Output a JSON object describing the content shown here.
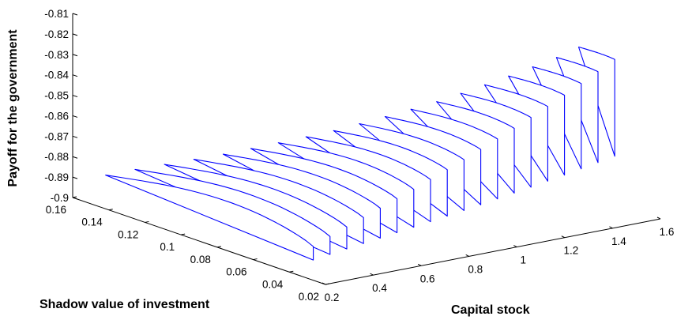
{
  "chart_data": {
    "type": "surface-slices-3d",
    "zlabel": "Payoff for the government",
    "xlabel": "Capital stock",
    "ylabel": "Shadow value of investment",
    "x_ticks": [
      "0.2",
      "0.4",
      "0.6",
      "0.8",
      "1",
      "1.2",
      "1.4",
      "1.6"
    ],
    "y_ticks": [
      "0.02",
      "0.04",
      "0.06",
      "0.08",
      "0.1",
      "0.12",
      "0.14",
      "0.16"
    ],
    "z_ticks": [
      "-0.9",
      "-0.89",
      "-0.88",
      "-0.87",
      "-0.86",
      "-0.85",
      "-0.84",
      "-0.83",
      "-0.82",
      "-0.81"
    ],
    "xlim": [
      0.2,
      1.6
    ],
    "ylim": [
      0.02,
      0.16
    ],
    "zlim": [
      -0.9,
      -0.81
    ],
    "grid": false,
    "line_color": "#0000ff",
    "series": [
      {
        "capital": 0.3,
        "y_range": [
          0.04,
          0.155
        ],
        "payoff_low": -0.8898,
        "payoff_peak": -0.8822
      },
      {
        "capital": 0.37,
        "y_range": [
          0.04,
          0.148
        ],
        "payoff_low": -0.8865,
        "payoff_peak": -0.8795
      },
      {
        "capital": 0.44,
        "y_range": [
          0.04,
          0.141
        ],
        "payoff_low": -0.8835,
        "payoff_peak": -0.8772
      },
      {
        "capital": 0.51,
        "y_range": [
          0.04,
          0.134
        ],
        "payoff_low": -0.8805,
        "payoff_peak": -0.8748
      },
      {
        "capital": 0.58,
        "y_range": [
          0.04,
          0.127
        ],
        "payoff_low": -0.8775,
        "payoff_peak": -0.8722
      },
      {
        "capital": 0.65,
        "y_range": [
          0.04,
          0.121
        ],
        "payoff_low": -0.8745,
        "payoff_peak": -0.8697
      },
      {
        "capital": 0.72,
        "y_range": [
          0.04,
          0.115
        ],
        "payoff_low": -0.8715,
        "payoff_peak": -0.8671
      },
      {
        "capital": 0.79,
        "y_range": [
          0.04,
          0.109
        ],
        "payoff_low": -0.8683,
        "payoff_peak": -0.8645
      },
      {
        "capital": 0.86,
        "y_range": [
          0.04,
          0.103
        ],
        "payoff_low": -0.8651,
        "payoff_peak": -0.8618
      },
      {
        "capital": 0.93,
        "y_range": [
          0.04,
          0.098
        ],
        "payoff_low": -0.8618,
        "payoff_peak": -0.859
      },
      {
        "capital": 1.0,
        "y_range": [
          0.04,
          0.093
        ],
        "payoff_low": -0.8584,
        "payoff_peak": -0.856
      },
      {
        "capital": 1.07,
        "y_range": [
          0.04,
          0.088
        ],
        "payoff_low": -0.8549,
        "payoff_peak": -0.8529
      },
      {
        "capital": 1.14,
        "y_range": [
          0.04,
          0.083
        ],
        "payoff_low": -0.8513,
        "payoff_peak": -0.8496
      },
      {
        "capital": 1.21,
        "y_range": [
          0.04,
          0.079
        ],
        "payoff_low": -0.8476,
        "payoff_peak": -0.8462
      },
      {
        "capital": 1.28,
        "y_range": [
          0.04,
          0.075
        ],
        "payoff_low": -0.8438,
        "payoff_peak": -0.8427
      },
      {
        "capital": 1.35,
        "y_range": [
          0.04,
          0.071
        ],
        "payoff_low": -0.8399,
        "payoff_peak": -0.839
      },
      {
        "capital": 1.42,
        "y_range": [
          0.04,
          0.067
        ],
        "payoff_low": -0.8358,
        "payoff_peak": -0.8351
      },
      {
        "capital": 1.49,
        "y_range": [
          0.04,
          0.063
        ],
        "payoff_low": -0.8316,
        "payoff_peak": -0.8311
      },
      {
        "capital": 1.56,
        "y_range": [
          0.04,
          0.06
        ],
        "payoff_low": -0.8272,
        "payoff_peak": -0.8268
      }
    ]
  }
}
